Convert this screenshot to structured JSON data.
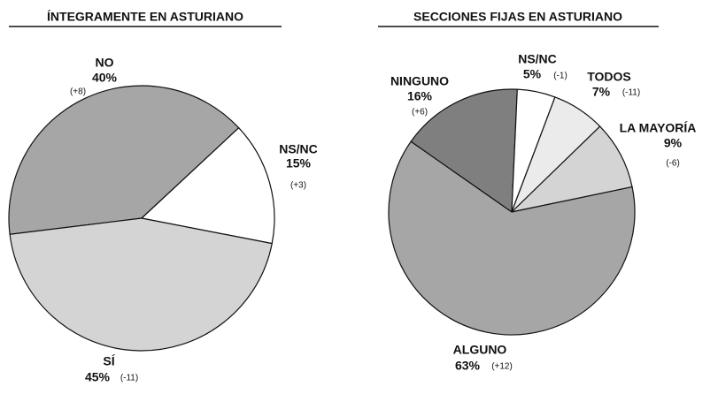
{
  "chart_data": [
    {
      "type": "pie",
      "title": "ÍNTEGRAMENTE EN ASTURIANO",
      "categories": [
        "NO",
        "NS/NC",
        "SÍ"
      ],
      "values": [
        40,
        15,
        45
      ],
      "value_labels": [
        "40%",
        "15%",
        "45%"
      ],
      "change_labels": [
        "(+8)",
        "(+3)",
        "(-11)"
      ],
      "colors": [
        "#a6a6a6",
        "#ffffff",
        "#d4d4d4"
      ]
    },
    {
      "type": "pie",
      "title": "SECCIONES FIJAS EN ASTURIANO",
      "categories": [
        "NINGUNO",
        "NS/NC",
        "TODOS",
        "LA MAYORÍA",
        "ALGUNO"
      ],
      "values": [
        16,
        5,
        7,
        9,
        63
      ],
      "value_labels": [
        "16%",
        "5%",
        "7%",
        "9%",
        "63%"
      ],
      "change_labels": [
        "(+6)",
        "(-1)",
        "(-11)",
        "(-6)",
        "(+12)"
      ],
      "colors": [
        "#7f7f7f",
        "#ffffff",
        "#ebebeb",
        "#d4d4d4",
        "#a6a6a6"
      ]
    }
  ]
}
